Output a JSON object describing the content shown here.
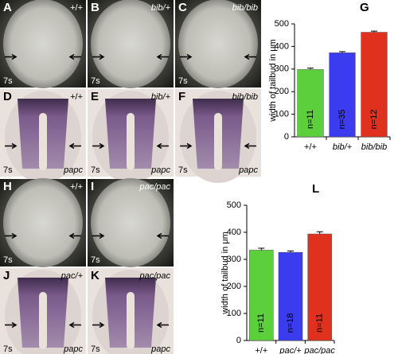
{
  "panels": [
    {
      "letter": "A",
      "genotype": "+/+",
      "stage": "7s"
    },
    {
      "letter": "B",
      "genotype": "bib/+",
      "stage": "7s"
    },
    {
      "letter": "C",
      "genotype": "bib/bib",
      "stage": "7s"
    },
    {
      "letter": "D",
      "genotype": "+/+",
      "stage": "7s",
      "probe": "papc"
    },
    {
      "letter": "E",
      "genotype": "bib/+",
      "stage": "7s",
      "probe": "papc"
    },
    {
      "letter": "F",
      "genotype": "bib/bib",
      "stage": "7s",
      "probe": "papc"
    },
    {
      "letter": "H",
      "genotype": "+/+",
      "stage": "7s"
    },
    {
      "letter": "I",
      "genotype": "pac/pac",
      "stage": "7s"
    },
    {
      "letter": "J",
      "genotype": "pac/+",
      "stage": "7s",
      "probe": "papc"
    },
    {
      "letter": "K",
      "genotype": "pac/pac",
      "stage": "7s",
      "probe": "papc"
    }
  ],
  "chart_data": [
    {
      "type": "bar",
      "label": "G",
      "y_label": "width of tailbud in μm",
      "categories": [
        "+/+",
        "bib/+",
        "bib/bib"
      ],
      "values": [
        298,
        372,
        463
      ],
      "errors": [
        6,
        5,
        5
      ],
      "annotations": [
        "n=11",
        "n=35",
        "n=12"
      ],
      "colors": [
        "#5ccf3c",
        "#3b3bf0",
        "#e0301e"
      ],
      "ylim": [
        0,
        500
      ],
      "yticks": [
        0,
        100,
        200,
        300,
        400,
        500
      ]
    },
    {
      "type": "bar",
      "label": "L",
      "y_label": "width of tailbud in μm",
      "categories": [
        "+/+",
        "pac/+",
        "pac/pac"
      ],
      "values": [
        334,
        326,
        394
      ],
      "errors": [
        7,
        5,
        8
      ],
      "annotations": [
        "n=11",
        "n=18",
        "n=11"
      ],
      "colors": [
        "#5ccf3c",
        "#3b3bf0",
        "#e0301e"
      ],
      "ylim": [
        0,
        500
      ],
      "yticks": [
        0,
        100,
        200,
        300,
        400,
        500
      ]
    }
  ]
}
